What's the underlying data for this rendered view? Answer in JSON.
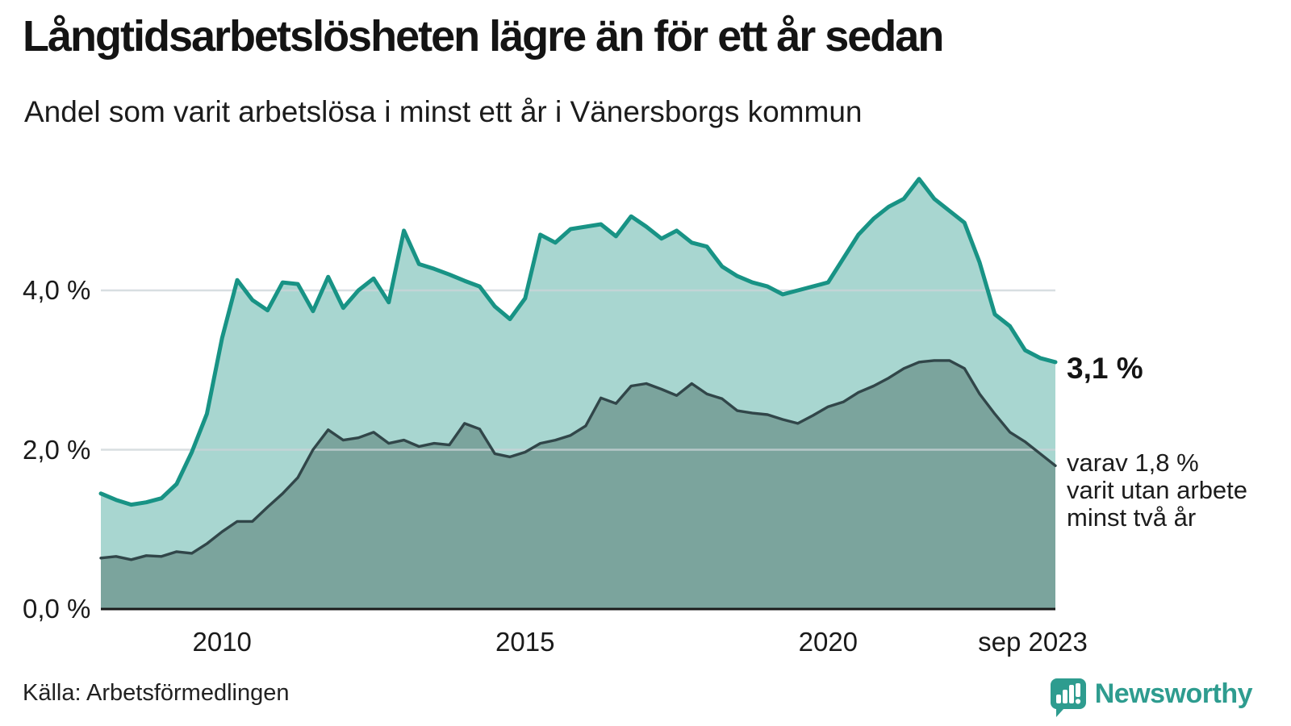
{
  "title": "Långtidsarbetslösheten lägre än för ett år sedan",
  "subtitle": "Andel som varit arbetslösa i minst ett år i Vänersborgs kommun",
  "annotations": {
    "latest_total": "3,1 %",
    "secondary_lines": [
      "varav 1,8 %",
      "varit utan arbete",
      "minst två år"
    ]
  },
  "source": "Källa: Arbetsförmedlingen",
  "logo": {
    "text": "Newsworthy"
  },
  "colors": {
    "total_line": "#189385",
    "total_fill": "#a8d6d0",
    "two_year_line": "#314649",
    "two_year_fill": "#7ba49d",
    "gridline": "#ccd4d8",
    "axis": "#1a1a1a",
    "logo_teal": "#2e9c8f",
    "text": "#141414"
  },
  "axes": {
    "y_ticks": [
      {
        "label": "4,0 %",
        "value": 4
      },
      {
        "label": "2,0 %",
        "value": 2
      },
      {
        "label": "0,0 %",
        "value": 0
      }
    ],
    "x_ticks": [
      {
        "label": "2010",
        "t": 2010.0
      },
      {
        "label": "2015",
        "t": 2015.0
      },
      {
        "label": "2020",
        "t": 2020.0
      },
      {
        "label": "sep 2023",
        "t": 2023.75
      }
    ]
  },
  "chart_data": {
    "type": "area",
    "title": "Långtidsarbetslösheten lägre än för ett år sedan",
    "subtitle": "Andel som varit arbetslösa i minst ett år i Vänersborgs kommun",
    "unit": "%",
    "x_unit": "decimal year (quarterly)",
    "x_range_labels": [
      "2008",
      "sep 2023"
    ],
    "ylim": [
      0,
      5.6
    ],
    "grid_values": [
      2,
      4
    ],
    "legend": "none (annotated at line ends)",
    "x": [
      2008.0,
      2008.25,
      2008.5,
      2008.75,
      2009.0,
      2009.25,
      2009.5,
      2009.75,
      2010.0,
      2010.25,
      2010.5,
      2010.75,
      2011.0,
      2011.25,
      2011.5,
      2011.75,
      2012.0,
      2012.25,
      2012.5,
      2012.75,
      2013.0,
      2013.25,
      2013.5,
      2013.75,
      2014.0,
      2014.25,
      2014.5,
      2014.75,
      2015.0,
      2015.25,
      2015.5,
      2015.75,
      2016.0,
      2016.25,
      2016.5,
      2016.75,
      2017.0,
      2017.25,
      2017.5,
      2017.75,
      2018.0,
      2018.25,
      2018.5,
      2018.75,
      2019.0,
      2019.25,
      2019.5,
      2019.75,
      2020.0,
      2020.25,
      2020.5,
      2020.75,
      2021.0,
      2021.25,
      2021.5,
      2021.75,
      2022.0,
      2022.25,
      2022.5,
      2022.75,
      2023.0,
      2023.25,
      2023.5,
      2023.75
    ],
    "series": [
      {
        "name": "Andel arbetslösa minst ett år",
        "end_label": "3,1 %",
        "values": [
          1.45,
          1.37,
          1.31,
          1.34,
          1.39,
          1.57,
          1.97,
          2.45,
          3.4,
          4.13,
          3.88,
          3.75,
          4.1,
          4.08,
          3.74,
          4.17,
          3.78,
          4.0,
          4.15,
          3.85,
          4.75,
          4.33,
          4.27,
          4.2,
          4.12,
          4.05,
          3.8,
          3.64,
          3.9,
          4.7,
          4.6,
          4.77,
          4.8,
          4.83,
          4.68,
          4.93,
          4.8,
          4.65,
          4.75,
          4.6,
          4.55,
          4.3,
          4.18,
          4.1,
          4.05,
          3.95,
          4.0,
          4.05,
          4.1,
          4.4,
          4.7,
          4.9,
          5.05,
          5.15,
          5.4,
          5.15,
          5.0,
          4.85,
          4.35,
          3.7,
          3.55,
          3.25,
          3.15,
          3.1
        ]
      },
      {
        "name": "varav arbetslösa minst två år",
        "end_label": "1,8 %",
        "values": [
          0.64,
          0.66,
          0.62,
          0.67,
          0.66,
          0.72,
          0.7,
          0.82,
          0.97,
          1.1,
          1.1,
          1.28,
          1.45,
          1.65,
          2.0,
          2.25,
          2.12,
          2.15,
          2.22,
          2.08,
          2.12,
          2.04,
          2.08,
          2.06,
          2.33,
          2.26,
          1.95,
          1.91,
          1.97,
          2.08,
          2.12,
          2.18,
          2.3,
          2.65,
          2.58,
          2.8,
          2.83,
          2.76,
          2.68,
          2.83,
          2.7,
          2.64,
          2.49,
          2.46,
          2.44,
          2.38,
          2.33,
          2.43,
          2.54,
          2.6,
          2.72,
          2.8,
          2.9,
          3.02,
          3.1,
          3.12,
          3.12,
          3.02,
          2.7,
          2.45,
          2.22,
          2.1,
          1.95,
          1.8
        ]
      }
    ]
  }
}
